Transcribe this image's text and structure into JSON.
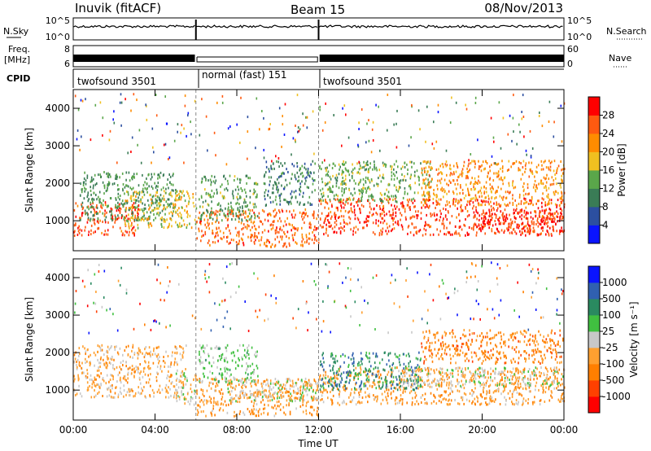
{
  "header": {
    "station": "Inuvik (fitACF)",
    "beam": "Beam 15",
    "date": "08/Nov/2013"
  },
  "status_panels": {
    "nsky_label": "N.Sky",
    "nsearch_label": "N.Search",
    "nsky_ticks": [
      "10^5",
      "10^0"
    ],
    "freq_label_top": "Freq.",
    "freq_label_unit": "[MHz]",
    "freq_ticks": [
      "8",
      "6"
    ],
    "nave_label": "Nave",
    "nave_ticks": [
      "60",
      "0"
    ],
    "cpid_label": "CPID",
    "cpid_segments": [
      {
        "start_h": 0,
        "end_h": 6,
        "name": "twofsound 3501"
      },
      {
        "start_h": 6,
        "end_h": 12,
        "name": "normal (fast) 151"
      },
      {
        "start_h": 12,
        "end_h": 24,
        "name": "twofsound 3501"
      }
    ]
  },
  "colors": {
    "power": [
      "#0a14ff",
      "#2c4fa0",
      "#3a7c56",
      "#5aa64a",
      "#f0c020",
      "#ff8c00",
      "#ff5a10",
      "#ff0000"
    ],
    "velocity": [
      "#ff0000",
      "#ff4000",
      "#ff7f00",
      "#ffa030",
      "#c8c8c8",
      "#40c040",
      "#2a8a60",
      "#3060b0",
      "#0a14ff"
    ]
  },
  "chart_data": [
    {
      "type": "heatmap",
      "name": "Power",
      "x_label": "",
      "x_range_h": [
        0,
        24
      ],
      "x_ticks": [
        "00:00",
        "04:00",
        "08:00",
        "12:00",
        "16:00",
        "20:00",
        "00:00"
      ],
      "y_label": "Slant Range [km]",
      "y_range": [
        200,
        4500
      ],
      "y_ticks": [
        1000,
        2000,
        3000,
        4000
      ],
      "colorbar_label": "Power [dB]",
      "colorbar_ticks": [
        "4",
        "8",
        "12",
        "16",
        "20",
        "24",
        "28"
      ],
      "colorbar_range": [
        0,
        32
      ],
      "dashed_lines_h": [
        6,
        12
      ],
      "regions": [
        {
          "t": [
            0.0,
            3.2
          ],
          "r": [
            600,
            1500
          ],
          "v": 27
        },
        {
          "t": [
            0.3,
            5.0
          ],
          "r": [
            1000,
            2300
          ],
          "v": 12
        },
        {
          "t": [
            2.5,
            6.0
          ],
          "r": [
            800,
            1800
          ],
          "v": 18
        },
        {
          "t": [
            6.0,
            12.0
          ],
          "r": [
            300,
            1300
          ],
          "v": 25
        },
        {
          "t": [
            6.1,
            9.0
          ],
          "r": [
            1000,
            2200
          ],
          "v": 13
        },
        {
          "t": [
            9.3,
            11.8
          ],
          "r": [
            1400,
            2600
          ],
          "v": 10
        },
        {
          "t": [
            12.0,
            24.0
          ],
          "r": [
            600,
            1600
          ],
          "v": 27
        },
        {
          "t": [
            12.0,
            17.5
          ],
          "r": [
            1500,
            2600
          ],
          "v": 14
        },
        {
          "t": [
            17.0,
            24.0
          ],
          "r": [
            1400,
            2600
          ],
          "v": 22
        },
        {
          "t": [
            19.5,
            24.0
          ],
          "r": [
            700,
            1300
          ],
          "v": 28
        }
      ]
    },
    {
      "type": "heatmap",
      "name": "Velocity",
      "x_label": "Time UT",
      "x_range_h": [
        0,
        24
      ],
      "x_ticks": [
        "00:00",
        "04:00",
        "08:00",
        "12:00",
        "16:00",
        "20:00",
        "00:00"
      ],
      "y_label": "Slant Range [km]",
      "y_range": [
        200,
        4500
      ],
      "y_ticks": [
        1000,
        2000,
        3000,
        4000
      ],
      "colorbar_label": "Velocity [m s⁻¹]",
      "colorbar_ticks": [
        "-1000",
        "-500",
        "-100",
        "-25",
        "25",
        "100",
        "500",
        "1000"
      ],
      "colorbar_range": [
        -1500,
        1500
      ],
      "dashed_lines_h": [
        6,
        12
      ],
      "regions": [
        {
          "t": [
            0.0,
            5.5
          ],
          "r": [
            800,
            2200
          ],
          "v": -300
        },
        {
          "t": [
            5.0,
            6.0
          ],
          "r": [
            600,
            1500
          ],
          "v": 0
        },
        {
          "t": [
            6.0,
            12.0
          ],
          "r": [
            300,
            1300
          ],
          "v": -400
        },
        {
          "t": [
            7.5,
            12.0
          ],
          "r": [
            700,
            1300
          ],
          "v": 0
        },
        {
          "t": [
            6.1,
            9.0
          ],
          "r": [
            1200,
            2200
          ],
          "v": 200
        },
        {
          "t": [
            12.0,
            24.0
          ],
          "r": [
            600,
            1600
          ],
          "v": -400
        },
        {
          "t": [
            12.0,
            17.0
          ],
          "r": [
            1000,
            2000
          ],
          "v": 700
        },
        {
          "t": [
            16.0,
            24.0
          ],
          "r": [
            1100,
            1600
          ],
          "v": 0
        },
        {
          "t": [
            17.0,
            24.0
          ],
          "r": [
            1700,
            2600
          ],
          "v": -600
        }
      ]
    }
  ]
}
